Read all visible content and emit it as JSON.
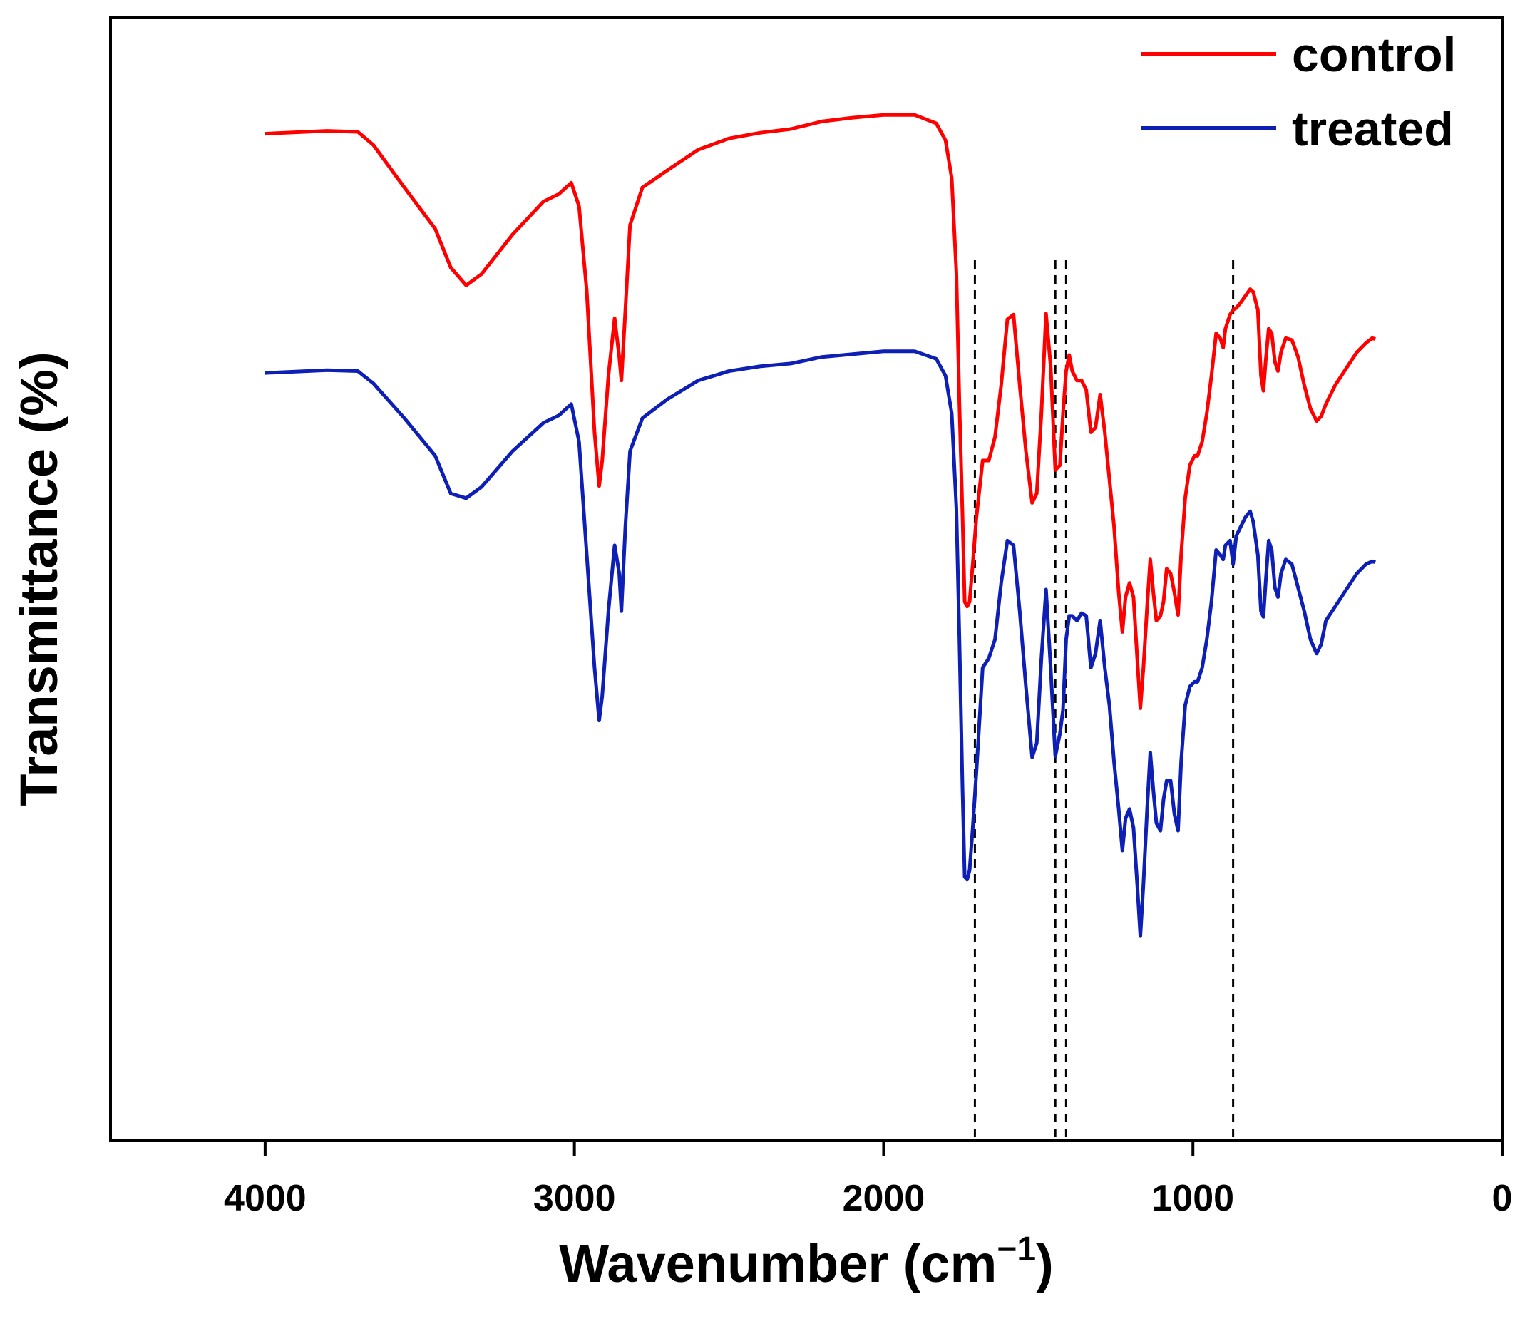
{
  "chart_data": {
    "type": "line",
    "title": "",
    "xlabel": "Wavenumber (cm",
    "xlabel_sup": "−1",
    "xlabel_close": ")",
    "ylabel": "Transmittance (%)",
    "xlim": [
      4500,
      0
    ],
    "ylim": [
      0,
      100
    ],
    "x_ticks": [
      4000,
      3000,
      2000,
      1000,
      0
    ],
    "x_tick_labels": [
      "4000",
      "3000",
      "2000",
      "1000",
      "0"
    ],
    "y_ticks_visible": false,
    "grid": false,
    "legend_position": "top-right",
    "reference_lines": [
      1705,
      1445,
      1410,
      870
    ],
    "series": [
      {
        "name": "control",
        "color": "#ff0000",
        "points": [
          [
            4000,
            96.7
          ],
          [
            3800,
            97.0
          ],
          [
            3700,
            96.9
          ],
          [
            3650,
            95.5
          ],
          [
            3550,
            91.0
          ],
          [
            3450,
            86.6
          ],
          [
            3400,
            82.5
          ],
          [
            3350,
            80.6
          ],
          [
            3300,
            81.8
          ],
          [
            3200,
            86.0
          ],
          [
            3100,
            89.5
          ],
          [
            3050,
            90.3
          ],
          [
            3010,
            91.5
          ],
          [
            2985,
            89.0
          ],
          [
            2960,
            80.0
          ],
          [
            2935,
            65.0
          ],
          [
            2920,
            59.3
          ],
          [
            2910,
            62.0
          ],
          [
            2890,
            71.0
          ],
          [
            2870,
            77.1
          ],
          [
            2855,
            73.0
          ],
          [
            2848,
            70.5
          ],
          [
            2835,
            78.0
          ],
          [
            2820,
            87.0
          ],
          [
            2780,
            91.0
          ],
          [
            2700,
            92.8
          ],
          [
            2600,
            95.0
          ],
          [
            2500,
            96.2
          ],
          [
            2400,
            96.8
          ],
          [
            2300,
            97.2
          ],
          [
            2200,
            98.0
          ],
          [
            2100,
            98.4
          ],
          [
            2000,
            98.7
          ],
          [
            1900,
            98.7
          ],
          [
            1830,
            97.8
          ],
          [
            1800,
            96.0
          ],
          [
            1780,
            92.0
          ],
          [
            1765,
            82.0
          ],
          [
            1755,
            68.0
          ],
          [
            1745,
            56.0
          ],
          [
            1738,
            47.0
          ],
          [
            1730,
            46.5
          ],
          [
            1722,
            47.0
          ],
          [
            1712,
            51.0
          ],
          [
            1700,
            56.0
          ],
          [
            1680,
            62.0
          ],
          [
            1660,
            62.0
          ],
          [
            1640,
            64.5
          ],
          [
            1620,
            70.0
          ],
          [
            1600,
            77.0
          ],
          [
            1580,
            77.5
          ],
          [
            1560,
            70.0
          ],
          [
            1540,
            63.0
          ],
          [
            1520,
            57.5
          ],
          [
            1505,
            58.5
          ],
          [
            1490,
            67.0
          ],
          [
            1475,
            77.6
          ],
          [
            1460,
            72.0
          ],
          [
            1445,
            61.0
          ],
          [
            1430,
            61.5
          ],
          [
            1420,
            67.0
          ],
          [
            1410,
            71.5
          ],
          [
            1400,
            73.2
          ],
          [
            1390,
            71.5
          ],
          [
            1375,
            70.5
          ],
          [
            1360,
            70.5
          ],
          [
            1345,
            69.5
          ],
          [
            1330,
            65.0
          ],
          [
            1315,
            65.5
          ],
          [
            1300,
            69.0
          ],
          [
            1285,
            65.0
          ],
          [
            1270,
            60.0
          ],
          [
            1255,
            55.0
          ],
          [
            1240,
            48.0
          ],
          [
            1228,
            43.8
          ],
          [
            1218,
            47.5
          ],
          [
            1205,
            49.0
          ],
          [
            1192,
            47.5
          ],
          [
            1180,
            41.0
          ],
          [
            1170,
            35.7
          ],
          [
            1160,
            40.0
          ],
          [
            1148,
            46.5
          ],
          [
            1138,
            51.5
          ],
          [
            1128,
            48.0
          ],
          [
            1118,
            45.0
          ],
          [
            1105,
            45.5
          ],
          [
            1095,
            47.0
          ],
          [
            1085,
            50.5
          ],
          [
            1072,
            50.0
          ],
          [
            1060,
            48.0
          ],
          [
            1048,
            45.6
          ],
          [
            1038,
            52.0
          ],
          [
            1025,
            58.0
          ],
          [
            1010,
            61.5
          ],
          [
            995,
            62.5
          ],
          [
            985,
            62.5
          ],
          [
            970,
            64.0
          ],
          [
            955,
            67.0
          ],
          [
            940,
            71.0
          ],
          [
            925,
            75.5
          ],
          [
            912,
            75.0
          ],
          [
            902,
            74.0
          ],
          [
            895,
            76.0
          ],
          [
            880,
            77.5
          ],
          [
            870,
            78.0
          ],
          [
            860,
            78.2
          ],
          [
            845,
            78.8
          ],
          [
            830,
            79.5
          ],
          [
            815,
            80.2
          ],
          [
            805,
            79.9
          ],
          [
            790,
            78.0
          ],
          [
            780,
            71.0
          ],
          [
            772,
            69.4
          ],
          [
            765,
            72.5
          ],
          [
            755,
            76.0
          ],
          [
            745,
            75.5
          ],
          [
            735,
            72.5
          ],
          [
            725,
            71.5
          ],
          [
            715,
            73.5
          ],
          [
            700,
            75.0
          ],
          [
            680,
            74.8
          ],
          [
            660,
            73.0
          ],
          [
            640,
            70.0
          ],
          [
            620,
            67.5
          ],
          [
            600,
            66.2
          ],
          [
            585,
            66.7
          ],
          [
            570,
            68.0
          ],
          [
            540,
            70.0
          ],
          [
            500,
            72.0
          ],
          [
            470,
            73.5
          ],
          [
            440,
            74.5
          ],
          [
            420,
            75.0
          ],
          [
            410,
            74.9
          ]
        ]
      },
      {
        "name": "treated",
        "color": "#0d1fb5",
        "points": [
          [
            4000,
            71.3
          ],
          [
            3800,
            71.6
          ],
          [
            3700,
            71.5
          ],
          [
            3650,
            70.2
          ],
          [
            3550,
            66.5
          ],
          [
            3450,
            62.5
          ],
          [
            3400,
            58.5
          ],
          [
            3350,
            58.0
          ],
          [
            3300,
            59.2
          ],
          [
            3200,
            63.0
          ],
          [
            3100,
            66.0
          ],
          [
            3050,
            66.8
          ],
          [
            3010,
            68.0
          ],
          [
            2985,
            64.0
          ],
          [
            2960,
            52.0
          ],
          [
            2935,
            40.0
          ],
          [
            2920,
            34.4
          ],
          [
            2910,
            37.0
          ],
          [
            2890,
            46.0
          ],
          [
            2870,
            53.0
          ],
          [
            2855,
            50.0
          ],
          [
            2848,
            46.0
          ],
          [
            2835,
            55.0
          ],
          [
            2820,
            63.0
          ],
          [
            2780,
            66.5
          ],
          [
            2700,
            68.5
          ],
          [
            2600,
            70.5
          ],
          [
            2500,
            71.5
          ],
          [
            2400,
            72.0
          ],
          [
            2300,
            72.3
          ],
          [
            2200,
            73.0
          ],
          [
            2100,
            73.3
          ],
          [
            2000,
            73.6
          ],
          [
            1900,
            73.6
          ],
          [
            1830,
            72.8
          ],
          [
            1800,
            71.0
          ],
          [
            1780,
            67.0
          ],
          [
            1765,
            57.0
          ],
          [
            1755,
            43.0
          ],
          [
            1745,
            27.0
          ],
          [
            1738,
            17.8
          ],
          [
            1730,
            17.5
          ],
          [
            1722,
            18.5
          ],
          [
            1712,
            23.0
          ],
          [
            1700,
            29.0
          ],
          [
            1680,
            40.0
          ],
          [
            1660,
            41.0
          ],
          [
            1640,
            43.0
          ],
          [
            1620,
            49.0
          ],
          [
            1600,
            53.5
          ],
          [
            1580,
            53.0
          ],
          [
            1560,
            46.0
          ],
          [
            1540,
            38.0
          ],
          [
            1520,
            30.5
          ],
          [
            1505,
            32.0
          ],
          [
            1490,
            41.0
          ],
          [
            1475,
            48.3
          ],
          [
            1460,
            40.0
          ],
          [
            1445,
            30.6
          ],
          [
            1430,
            33.0
          ],
          [
            1420,
            35.5
          ],
          [
            1410,
            43.0
          ],
          [
            1400,
            45.5
          ],
          [
            1390,
            45.5
          ],
          [
            1375,
            45.0
          ],
          [
            1360,
            45.8
          ],
          [
            1345,
            45.5
          ],
          [
            1330,
            40.0
          ],
          [
            1315,
            41.5
          ],
          [
            1300,
            45.0
          ],
          [
            1285,
            40.0
          ],
          [
            1270,
            36.0
          ],
          [
            1255,
            30.0
          ],
          [
            1240,
            25.0
          ],
          [
            1228,
            20.6
          ],
          [
            1218,
            24.0
          ],
          [
            1205,
            25.0
          ],
          [
            1192,
            23.0
          ],
          [
            1180,
            17.0
          ],
          [
            1170,
            11.5
          ],
          [
            1160,
            17.0
          ],
          [
            1148,
            25.0
          ],
          [
            1138,
            31.0
          ],
          [
            1128,
            27.0
          ],
          [
            1118,
            23.5
          ],
          [
            1105,
            22.7
          ],
          [
            1095,
            26.0
          ],
          [
            1085,
            28.0
          ],
          [
            1072,
            28.0
          ],
          [
            1060,
            24.5
          ],
          [
            1048,
            22.7
          ],
          [
            1038,
            30.0
          ],
          [
            1025,
            36.0
          ],
          [
            1010,
            38.0
          ],
          [
            995,
            38.5
          ],
          [
            985,
            38.5
          ],
          [
            970,
            40.0
          ],
          [
            955,
            43.0
          ],
          [
            940,
            47.0
          ],
          [
            925,
            52.5
          ],
          [
            912,
            52.0
          ],
          [
            902,
            51.5
          ],
          [
            895,
            53.0
          ],
          [
            880,
            53.5
          ],
          [
            870,
            51.0
          ],
          [
            860,
            54.0
          ],
          [
            845,
            55.0
          ],
          [
            830,
            56.0
          ],
          [
            815,
            56.6
          ],
          [
            805,
            55.5
          ],
          [
            790,
            52.0
          ],
          [
            780,
            46.0
          ],
          [
            772,
            45.4
          ],
          [
            765,
            49.0
          ],
          [
            755,
            53.5
          ],
          [
            745,
            52.5
          ],
          [
            735,
            48.5
          ],
          [
            725,
            47.5
          ],
          [
            715,
            50.0
          ],
          [
            700,
            51.5
          ],
          [
            680,
            51.0
          ],
          [
            660,
            48.5
          ],
          [
            640,
            46.0
          ],
          [
            620,
            43.0
          ],
          [
            600,
            41.5
          ],
          [
            585,
            42.5
          ],
          [
            570,
            45.0
          ],
          [
            540,
            46.5
          ],
          [
            500,
            48.5
          ],
          [
            470,
            50.0
          ],
          [
            440,
            51.0
          ],
          [
            420,
            51.3
          ],
          [
            410,
            51.2
          ]
        ]
      }
    ]
  }
}
